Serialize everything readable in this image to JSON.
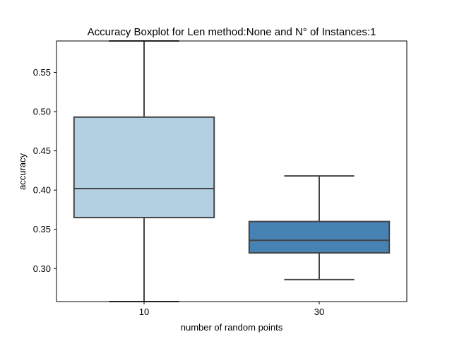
{
  "chart_data": {
    "type": "box",
    "title": "Accuracy Boxplot for Len method:None and N° of Instances:1",
    "xlabel": "number of random points",
    "ylabel": "accuracy",
    "categories": [
      "10",
      "30"
    ],
    "ylim": [
      0.258,
      0.59
    ],
    "yticks": [
      0.3,
      0.35,
      0.4,
      0.45,
      0.5,
      0.55
    ],
    "ytick_labels": [
      "0.30",
      "0.35",
      "0.40",
      "0.45",
      "0.50",
      "0.55"
    ],
    "grid": false,
    "boxes": [
      {
        "category": "10",
        "whisker_low": 0.258,
        "q1": 0.365,
        "median": 0.402,
        "q3": 0.493,
        "whisker_high": 0.59,
        "color": "#b3cfe2"
      },
      {
        "category": "30",
        "whisker_low": 0.286,
        "q1": 0.32,
        "median": 0.336,
        "q3": 0.36,
        "whisker_high": 0.418,
        "color": "#4682b4"
      }
    ],
    "edge_color": "#444444"
  }
}
